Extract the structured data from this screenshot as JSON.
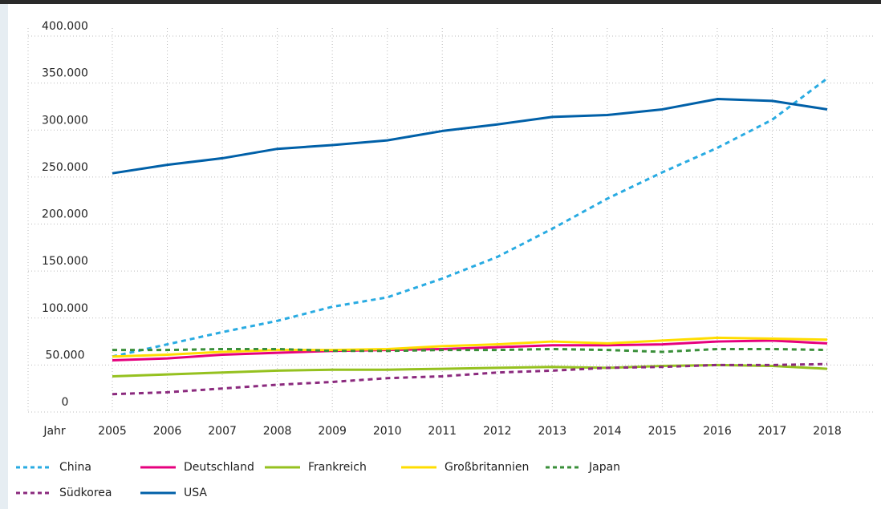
{
  "chart_data": {
    "type": "line",
    "x_label": "Jahr",
    "categories": [
      "2005",
      "2006",
      "2007",
      "2008",
      "2009",
      "2010",
      "2011",
      "2012",
      "2013",
      "2014",
      "2015",
      "2016",
      "2017",
      "2018"
    ],
    "ylim": [
      0,
      400000
    ],
    "yticks": [
      0,
      {
        "value": 50000,
        "label": "50.000"
      },
      {
        "value": 100000,
        "label": "100.000"
      },
      {
        "value": 150000,
        "label": "150.000"
      },
      {
        "value": 200000,
        "label": "200.000"
      },
      {
        "value": 250000,
        "label": "250.000"
      },
      {
        "value": 300000,
        "label": "300.000"
      },
      {
        "value": 350000,
        "label": "350.000"
      },
      {
        "value": 400000,
        "label": "400.000"
      }
    ],
    "grid": true,
    "legend": "bottom",
    "series": [
      {
        "name": "China",
        "color": "#29abe2",
        "dashed": true,
        "values": [
          59000,
          72000,
          85000,
          97000,
          112000,
          122000,
          142000,
          165000,
          195000,
          227000,
          255000,
          281000,
          311000,
          355000
        ]
      },
      {
        "name": "Deutschland",
        "color": "#e6007e",
        "dashed": false,
        "values": [
          55000,
          57000,
          61000,
          63000,
          65000,
          66000,
          67000,
          69000,
          71000,
          71000,
          72000,
          75000,
          76000,
          73000
        ]
      },
      {
        "name": "Frankreich",
        "color": "#95c11f",
        "dashed": false,
        "values": [
          38000,
          40000,
          42000,
          44000,
          45000,
          45000,
          46000,
          47000,
          48000,
          47000,
          49000,
          50000,
          49000,
          46000
        ]
      },
      {
        "name": "Großbritannien",
        "color": "#ffdd00",
        "dashed": false,
        "values": [
          59000,
          61000,
          64000,
          66000,
          66000,
          67000,
          70000,
          72000,
          75000,
          73000,
          76000,
          79000,
          78000,
          77000
        ]
      },
      {
        "name": "Japan",
        "color": "#3a8f3a",
        "dashed": true,
        "values": [
          66000,
          66000,
          67000,
          67000,
          65000,
          65000,
          66000,
          66000,
          67000,
          66000,
          64000,
          67000,
          67000,
          66000
        ]
      },
      {
        "name": "Südkorea",
        "color": "#8b2a7e",
        "dashed": true,
        "values": [
          19000,
          21000,
          25000,
          29000,
          32000,
          36000,
          38000,
          42000,
          44000,
          47000,
          48000,
          50000,
          50000,
          51000
        ]
      },
      {
        "name": "USA",
        "color": "#0060a8",
        "dashed": false,
        "values": [
          254000,
          263000,
          270000,
          280000,
          284000,
          289000,
          299000,
          306000,
          314000,
          316000,
          322000,
          333000,
          331000,
          322000
        ]
      }
    ]
  }
}
